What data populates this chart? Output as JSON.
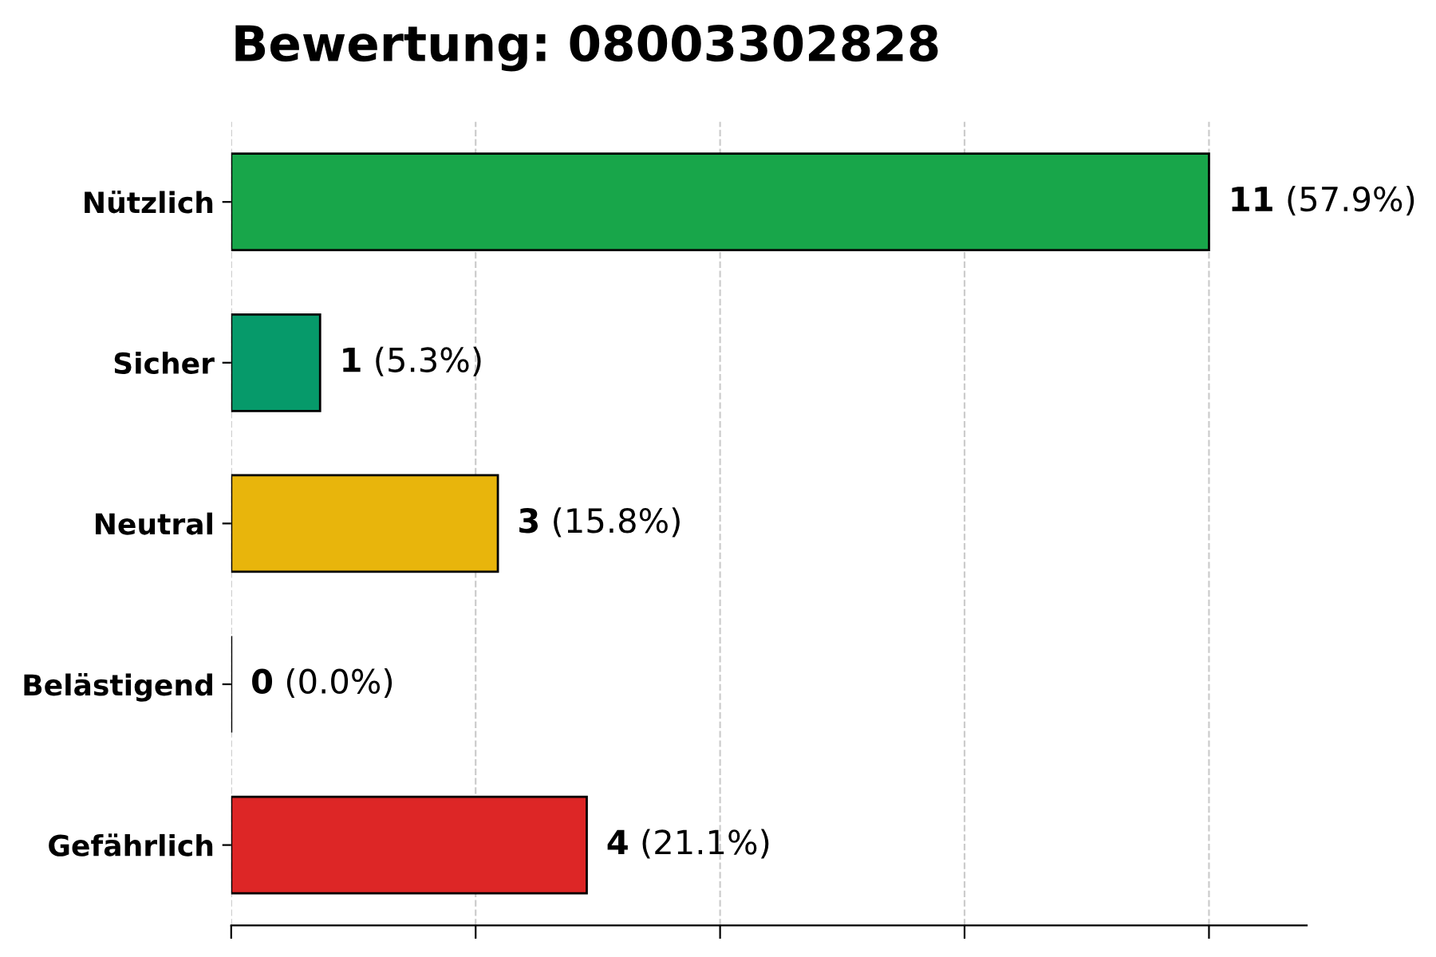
{
  "chart_data": {
    "type": "bar",
    "orientation": "horizontal",
    "title": "Bewertung: 08003302828",
    "categories": [
      "Nützlich",
      "Sicher",
      "Neutral",
      "Belästigend",
      "Gefährlich"
    ],
    "values": [
      11,
      1,
      3,
      0,
      4
    ],
    "colors": [
      "#18a64a",
      "#069a6a",
      "#e8b50c",
      "#000000",
      "#dd2626"
    ],
    "value_labels": [
      "11 (57.9%)",
      "1 (5.3%)",
      "3 (15.8%)",
      "0 (0.0%)",
      "4 (21.1%)"
    ],
    "xlim": [
      0,
      12.1
    ],
    "xticks": [
      {
        "value": 0,
        "label": null
      },
      {
        "value": 2.75,
        "label": null
      },
      {
        "value": 5.5,
        "label": null
      },
      {
        "value": 8.25,
        "label": null
      },
      {
        "value": 11,
        "label": null
      }
    ],
    "tick_labels": "y",
    "grid": "x",
    "legend": false
  }
}
